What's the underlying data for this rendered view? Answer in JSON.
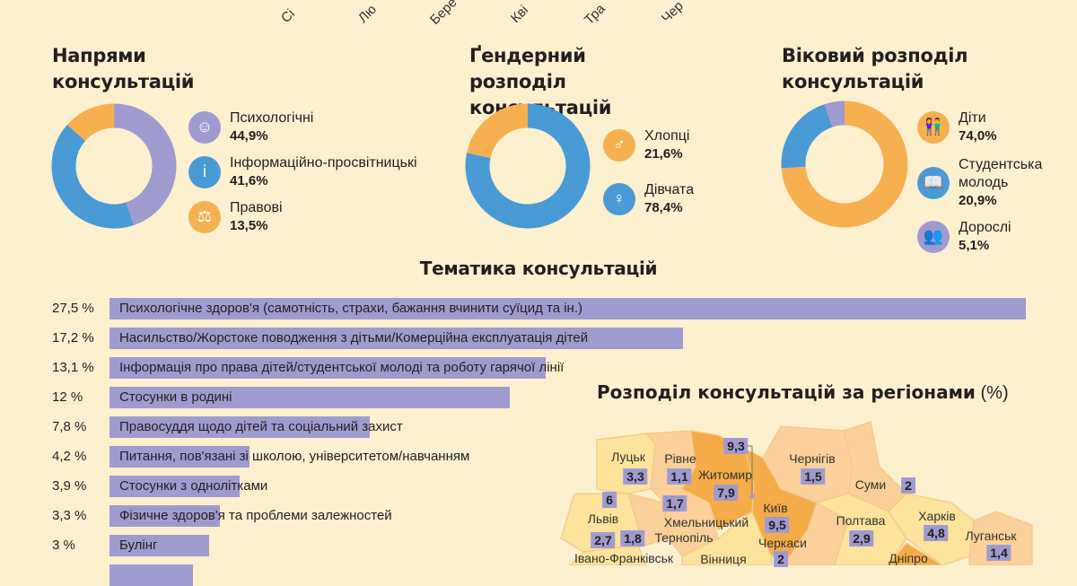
{
  "months_partial": [
    "Сі",
    "Лю",
    "Бере",
    "Кві",
    "Тра",
    "Чер"
  ],
  "colors": {
    "background": "#fdf0cf",
    "purple": "#a09bcf",
    "blue": "#4a9ad6",
    "orange": "#f7b050",
    "map_light": "#fde39c",
    "map_mid": "#fbd09a",
    "map_dark": "#f5ac48"
  },
  "chart_data": [
    {
      "type": "pie",
      "title": "Напрями консультацій",
      "slices": [
        {
          "label": "Психологічні",
          "value": 44.9,
          "display": "44,9%",
          "color": "#a09bcf",
          "icon": "head-icon"
        },
        {
          "label": "Інформаційно-просвітницькі",
          "value": 41.6,
          "display": "41,6%",
          "color": "#4a9ad6",
          "icon": "info-icon"
        },
        {
          "label": "Правові",
          "value": 13.5,
          "display": "13,5%",
          "color": "#f7b050",
          "icon": "scales-icon"
        }
      ]
    },
    {
      "type": "pie",
      "title": "Ґендерний розподіл консультацій",
      "slices": [
        {
          "label": "Дівчата",
          "value": 78.4,
          "display": "78,4%",
          "color": "#4a9ad6",
          "icon": "female-icon"
        },
        {
          "label": "Хлопці",
          "value": 21.6,
          "display": "21,6%",
          "color": "#f7b050",
          "icon": "male-icon"
        }
      ]
    },
    {
      "type": "pie",
      "title": "Віковий розподіл консультацій",
      "slices": [
        {
          "label": "Діти",
          "value": 74.0,
          "display": "74,0%",
          "color": "#f7b050",
          "icon": "children-icon"
        },
        {
          "label": "Студентська молодь",
          "value": 20.9,
          "display": "20,9%",
          "color": "#4a9ad6",
          "icon": "student-icon"
        },
        {
          "label": "Дорослі",
          "value": 5.1,
          "display": "5,1%",
          "color": "#a09bcf",
          "icon": "adults-icon"
        }
      ]
    },
    {
      "type": "bar",
      "title": "Тематика консультацій",
      "max": 27.5,
      "items": [
        {
          "value": 27.5,
          "display": "27,5 %",
          "label": "Психологічне здоров'я (самотність, страхи, бажання вчинити суїцид та ін.)"
        },
        {
          "value": 17.2,
          "display": "17,2 %",
          "label": "Насильство/Жорстоке поводження з дітьми/Комерційна експлуатація дітей"
        },
        {
          "value": 13.1,
          "display": "13,1 %",
          "label": "Інформація про права дітей/студентської молоді та роботу гарячої лінії"
        },
        {
          "value": 12,
          "display": "12 %",
          "label": "Стосунки в родині"
        },
        {
          "value": 7.8,
          "display": "7,8 %",
          "label": "Правосуддя щодо дітей та соціальний захист"
        },
        {
          "value": 4.2,
          "display": "4,2 %",
          "label": "Питання, пов'язані зі школою, університетом/навчанням"
        },
        {
          "value": 3.9,
          "display": "3,9 %",
          "label": "Стосунки з однолітками"
        },
        {
          "value": 3.3,
          "display": "3,3 %",
          "label": "Фізичне здоров'я та проблеми залежностей"
        },
        {
          "value": 3,
          "display": "3 %",
          "label": "Булінг"
        },
        {
          "value": 2.5,
          "display": "",
          "label": ""
        }
      ]
    }
  ],
  "legend_text": {
    "dir": [
      {
        "label": "Психологічні",
        "value": "44,9%"
      },
      {
        "label": "Інформаційно-просвітницькі",
        "value": "41,6%"
      },
      {
        "label": "Правові",
        "value": "13,5%"
      }
    ],
    "gender": [
      {
        "label": "Хлопці",
        "value": "21,6%"
      },
      {
        "label": "Дівчата",
        "value": "78,4%"
      }
    ],
    "age": [
      {
        "label": "Діти",
        "value": "74,0%"
      },
      {
        "label": "Студентська молодь",
        "value": "20,9%"
      },
      {
        "label": "Дорослі",
        "value": "5,1%"
      }
    ]
  },
  "titles": {
    "dir": "Напрями консультацій",
    "gender": "Ґендерний розподіл консультацій",
    "age": "Віковий розподіл консультацій",
    "topics": "Тематика консультацій",
    "map": "Розподіл консультацій за регіонами",
    "map_unit": "(%)"
  },
  "map": {
    "regions": [
      {
        "name": "Луцьк",
        "value": "3,3"
      },
      {
        "name": "Рівне",
        "value": "1,1"
      },
      {
        "name": "Житомир",
        "value": "7,9"
      },
      {
        "name": "Київ",
        "value": "9,5",
        "city_value": "9,3"
      },
      {
        "name": "Чернігів",
        "value": "1,5"
      },
      {
        "name": "Суми",
        "value": "2"
      },
      {
        "name": "Львів",
        "value": "6"
      },
      {
        "name": "Хмельницький",
        "value": "1,7"
      },
      {
        "name": "Тернопіль",
        "value": "1,8"
      },
      {
        "name": "Івано-Франківськ",
        "value": "2,7"
      },
      {
        "name": "Вінниця",
        "value": ""
      },
      {
        "name": "Черкаси",
        "value": "2"
      },
      {
        "name": "Полтава",
        "value": "2,9"
      },
      {
        "name": "Харків",
        "value": "4,8"
      },
      {
        "name": "Луганськ",
        "value": "1,4"
      },
      {
        "name": "Дніпро",
        "value": ""
      }
    ]
  }
}
